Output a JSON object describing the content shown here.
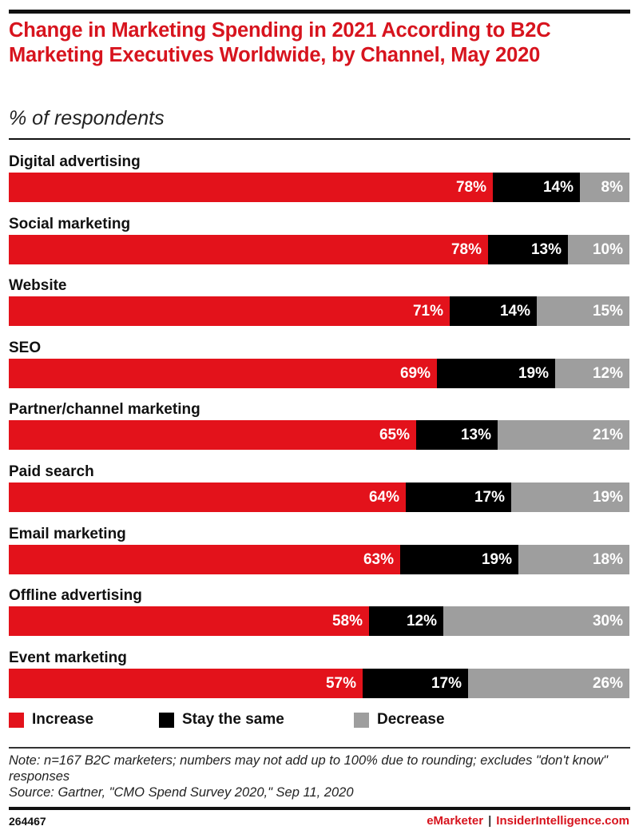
{
  "header": {
    "title": "Change in Marketing Spending in 2021 According to B2C Marketing Executives Worldwide, by Channel, May 2020",
    "subtitle": "% of respondents"
  },
  "colors": {
    "increase": "#e3121b",
    "stay_the_same": "#000000",
    "decrease": "#9e9e9e",
    "title": "#d7141e"
  },
  "chart_data": {
    "type": "bar",
    "orientation": "horizontal",
    "stacked": true,
    "title": "Change in Marketing Spending in 2021 According to B2C Marketing Executives Worldwide, by Channel, May 2020",
    "subtitle": "% of respondents",
    "xlabel": "",
    "ylabel": "",
    "xlim": [
      0,
      100
    ],
    "grid": false,
    "legend_position": "bottom-left",
    "categories": [
      "Digital advertising",
      "Social marketing",
      "Website",
      "SEO",
      "Partner/channel marketing",
      "Paid search",
      "Email marketing",
      "Offline advertising",
      "Event marketing"
    ],
    "series": [
      {
        "name": "Increase",
        "color": "#e3121b",
        "values": [
          78,
          78,
          71,
          69,
          65,
          64,
          63,
          58,
          57
        ]
      },
      {
        "name": "Stay the same",
        "color": "#000000",
        "values": [
          14,
          13,
          14,
          19,
          13,
          17,
          19,
          12,
          17
        ]
      },
      {
        "name": "Decrease",
        "color": "#9e9e9e",
        "values": [
          8,
          10,
          15,
          12,
          21,
          19,
          18,
          30,
          26
        ]
      }
    ],
    "value_suffix": "%"
  },
  "legend": [
    {
      "label": "Increase",
      "color": "#e3121b"
    },
    {
      "label": "Stay the same",
      "color": "#000000"
    },
    {
      "label": "Decrease",
      "color": "#9e9e9e"
    }
  ],
  "footer": {
    "note": "Note: n=167 B2C marketers; numbers may not add up to 100% due to rounding; excludes \"don't know\" responses",
    "source": "Source: Gartner, \"CMO Spend Survey 2020,\" Sep 11, 2020",
    "chart_id": "264467",
    "brand_left": "eMarketer",
    "brand_separator": "|",
    "brand_right": "InsiderIntelligence.com"
  }
}
